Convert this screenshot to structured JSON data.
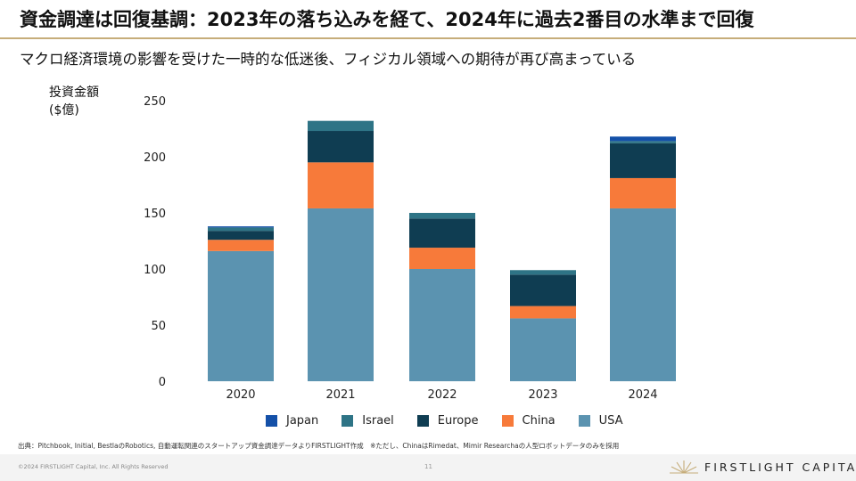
{
  "slide": {
    "title": "資金調達は回復基調：2023年の落ち込みを経て、2024年に過去2番目の水準まで回復",
    "subtitle": "マクロ経済環境の影響を受けた一時的な低迷後、フィジカル領域への期待が再び高まっている",
    "source": "出典：Pitchbook, Initial, BestlaのRobotics, 自動運転関連のスタートアップ資金調達データよりFIRSTLIGHT作成　※ただし、ChinaはRimedat、Mimir Researchaの人型ロボットデータのみを採用",
    "copyright": "©2024 FIRSTLIGHT Capital, Inc. All Rights Reserved",
    "page_number": "11",
    "logo_text": "FIRSTLIGHT CAPITAL"
  },
  "chart_data": {
    "type": "bar",
    "stacked": true,
    "ylabel_line1": "投資金額",
    "ylabel_line2": "($億)",
    "ylim": [
      0,
      250
    ],
    "yticks": [
      0,
      50,
      100,
      150,
      200,
      250
    ],
    "categories": [
      "2020",
      "2021",
      "2022",
      "2023",
      "2024"
    ],
    "series": [
      {
        "name": "USA",
        "color": "#5b93b0",
        "values": [
          116,
          154,
          100,
          56,
          154
        ]
      },
      {
        "name": "China",
        "color": "#f77a3a",
        "values": [
          10,
          41,
          19,
          11,
          27
        ]
      },
      {
        "name": "Europe",
        "color": "#0f3d52",
        "values": [
          8,
          28,
          26,
          28,
          31
        ]
      },
      {
        "name": "Israel",
        "color": "#2e7486",
        "values": [
          3,
          9,
          5,
          4,
          2
        ]
      },
      {
        "name": "Japan",
        "color": "#1450a8",
        "values": [
          1,
          0,
          0,
          0,
          4
        ]
      }
    ],
    "legend_order": [
      "Japan",
      "Israel",
      "Europe",
      "China",
      "USA"
    ],
    "legend_position": "bottom"
  }
}
